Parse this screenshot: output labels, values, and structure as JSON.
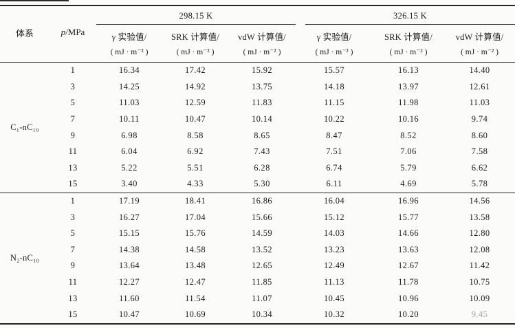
{
  "table": {
    "corner_header": "体系",
    "pressure_header": {
      "symbol": "p",
      "rest": "/MPa"
    },
    "temperature_groups": [
      {
        "label": "298.15 K"
      },
      {
        "label": "326.15 K"
      }
    ],
    "columns": [
      {
        "title": "γ 实验值/",
        "unit": "( mJ · m⁻² )"
      },
      {
        "title": "SRK 计算值/",
        "unit": "( mJ · m⁻² )"
      },
      {
        "title": "vdW 计算值/",
        "unit": "( mJ · m⁻² )"
      },
      {
        "title": "γ 实验值/",
        "unit": "( mJ · m⁻² )"
      },
      {
        "title": "SRK 计算值/",
        "unit": "( mJ · m⁻² )"
      },
      {
        "title": "vdW 计算值/",
        "unit": "( mJ · m⁻² )"
      }
    ],
    "systems": [
      {
        "name": "C₁-nC₁₀",
        "rows": [
          {
            "p": "1",
            "values": [
              "16.34",
              "17.42",
              "15.92",
              "15.57",
              "16.13",
              "14.40"
            ]
          },
          {
            "p": "3",
            "values": [
              "14.25",
              "14.92",
              "13.75",
              "14.18",
              "13.97",
              "12.61"
            ]
          },
          {
            "p": "5",
            "values": [
              "11.03",
              "12.59",
              "11.83",
              "11.15",
              "11.98",
              "11.03"
            ]
          },
          {
            "p": "7",
            "values": [
              "10.11",
              "10.47",
              "10.14",
              "10.22",
              "10.16",
              "9.74"
            ]
          },
          {
            "p": "9",
            "values": [
              "6.98",
              "8.58",
              "8.65",
              "8.47",
              "8.52",
              "8.60"
            ]
          },
          {
            "p": "11",
            "values": [
              "6.04",
              "6.92",
              "7.43",
              "7.51",
              "7.06",
              "7.58"
            ]
          },
          {
            "p": "13",
            "values": [
              "5.22",
              "5.51",
              "6.28",
              "6.74",
              "5.79",
              "6.62"
            ]
          },
          {
            "p": "15",
            "values": [
              "3.40",
              "4.33",
              "5.30",
              "6.11",
              "4.69",
              "5.78"
            ]
          }
        ]
      },
      {
        "name": "N₂-nC₁₀",
        "rows": [
          {
            "p": "1",
            "values": [
              "17.19",
              "18.41",
              "16.86",
              "16.04",
              "16.96",
              "14.56"
            ]
          },
          {
            "p": "3",
            "values": [
              "16.27",
              "17.04",
              "15.66",
              "15.12",
              "15.77",
              "13.58"
            ]
          },
          {
            "p": "5",
            "values": [
              "15.15",
              "15.76",
              "14.59",
              "14.03",
              "14.66",
              "12.80"
            ]
          },
          {
            "p": "7",
            "values": [
              "14.38",
              "14.58",
              "13.52",
              "13.23",
              "13.63",
              "12.08"
            ]
          },
          {
            "p": "9",
            "values": [
              "13.64",
              "13.48",
              "12.65",
              "12.49",
              "12.67",
              "11.42"
            ]
          },
          {
            "p": "11",
            "values": [
              "12.27",
              "12.47",
              "11.85",
              "11.13",
              "11.78",
              "10.75"
            ]
          },
          {
            "p": "13",
            "values": [
              "11.60",
              "11.54",
              "11.07",
              "10.45",
              "10.96",
              "10.09"
            ]
          },
          {
            "p": "15",
            "values": [
              "10.47",
              "10.69",
              "10.34",
              "10.32",
              "10.20",
              "9.45"
            ],
            "faded_col": 5
          }
        ]
      }
    ]
  }
}
